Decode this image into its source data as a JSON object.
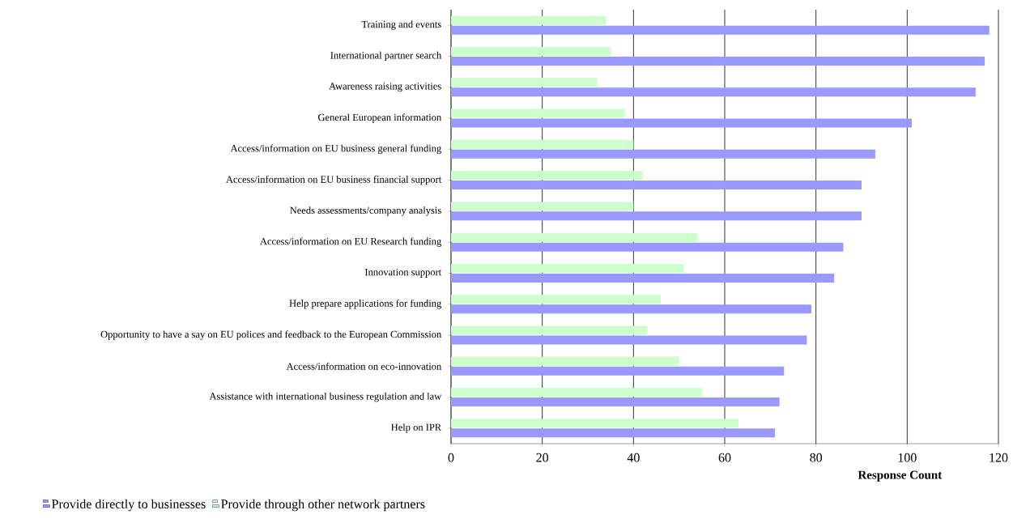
{
  "chart_data": {
    "type": "bar",
    "orientation": "horizontal",
    "xlabel": "Response Count",
    "categories": [
      "Training and events",
      "International partner search",
      "Awareness raising activities",
      "General European information",
      "Access/information on EU business general funding",
      "Access/information on EU business financial support",
      "Needs assessments/company analysis",
      "Access/information on EU Research funding",
      "Innovation support",
      "Help prepare applications for funding",
      "Opportunity to have a say on EU polices and feedback to the European Commission",
      "Access/information on eco-innovation",
      "Assistance with international business regulation and law",
      "Help on IPR"
    ],
    "series": [
      {
        "name": "Provide directly to businesses",
        "color": "#9999ff",
        "values": [
          118,
          117,
          115,
          101,
          93,
          90,
          90,
          86,
          84,
          79,
          78,
          73,
          72,
          71
        ]
      },
      {
        "name": "Provide through other network partners",
        "color": "#ccffcc",
        "values": [
          34,
          35,
          32,
          38,
          40,
          42,
          40,
          54,
          51,
          46,
          43,
          50,
          55,
          63
        ]
      }
    ],
    "xlim": [
      0,
      120
    ],
    "xticks": [
      0,
      20,
      40,
      60,
      80,
      100,
      120
    ],
    "grid": "x",
    "legend": "bottom left"
  }
}
